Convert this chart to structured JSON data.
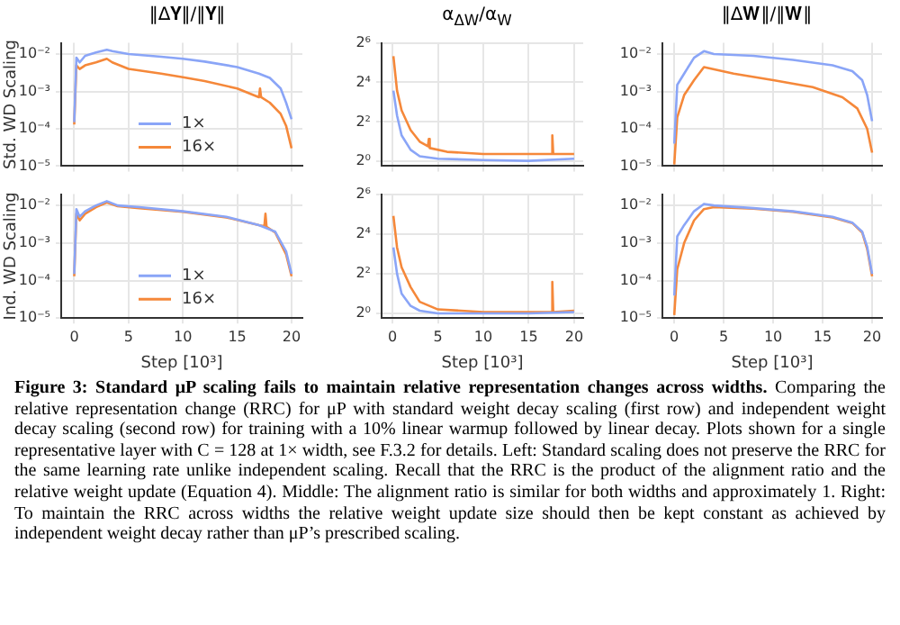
{
  "chart_data": [
    {
      "type": "line",
      "title": "‖Δ𝐘‖/‖𝐘‖",
      "ylabel": "Std. WD Scaling",
      "log": "y",
      "grid": true,
      "legend": "bottom",
      "tick_labels": "y",
      "xlim": [
        -1.2,
        21
      ],
      "xticks": [
        0,
        5,
        10,
        15,
        20
      ],
      "ylim": [
        1e-05,
        0.02
      ],
      "yticks": [
        {
          "value": 1e-05,
          "label": "10⁻⁵"
        },
        {
          "value": 0.0001,
          "label": "10⁻⁴"
        },
        {
          "value": 0.001,
          "label": "10⁻³"
        },
        {
          "value": 0.01,
          "label": "10⁻²"
        }
      ],
      "annotations": [
        "Figure 3: Standard μP scaling fails to maintain relative representation changes across widths.",
        "Comparing the relative representation change (RRC) for μP with standard weight decay scaling (first row) and independent weight decay scaling (second row) for training with a 10% linear warmup followed by linear decay. Plots shown for a single representative layer with C = 128 at 1× width, see F.3.2 for details.",
        "Left: Standard scaling does not preserve the RRC for the same learning rate unlike independent scaling. Recall that the RRC is the product of the alignment ratio and the relative weight update (Equation 4).",
        "Middle: The alignment ratio is similar for both widths and approximately 1.",
        "Right: To maintain the RRC across widths the relative weight update size should then be kept constant as achieved by independent weight decay rather than μP’s prescribed scaling."
      ],
      "series": [
        {
          "name": "1×",
          "color": "#8aa5f7",
          "x": [
            0,
            0.2,
            0.5,
            1,
            2,
            3,
            3.5,
            5,
            8,
            10,
            12,
            15,
            17,
            18,
            19,
            19.5,
            20
          ],
          "values": [
            0.00015,
            0.008,
            0.006,
            0.009,
            0.011,
            0.013,
            0.012,
            0.01,
            0.0085,
            0.0075,
            0.0063,
            0.0045,
            0.003,
            0.0023,
            0.0012,
            0.0005,
            0.00018
          ]
        },
        {
          "name": "16×",
          "color": "#f5883a",
          "x": [
            0,
            0.2,
            0.5,
            1,
            2,
            3,
            3.5,
            5,
            8,
            10,
            12,
            15,
            17,
            17.1,
            17.2,
            18,
            19,
            19.5,
            20
          ],
          "values": [
            0.00013,
            0.005,
            0.004,
            0.005,
            0.006,
            0.0075,
            0.006,
            0.004,
            0.003,
            0.0024,
            0.0019,
            0.0012,
            0.0007,
            0.0012,
            0.0007,
            0.0005,
            0.00025,
            0.00012,
            3e-05
          ]
        }
      ]
    },
    {
      "type": "line",
      "title": "α$_{ΔW}$/α$_{W}$",
      "log": "y",
      "grid": true,
      "tick_labels": "y",
      "xlim": [
        -1.2,
        21
      ],
      "xticks": [
        0,
        5,
        10,
        15,
        20
      ],
      "ylim": [
        0.85,
        64
      ],
      "yticks": [
        {
          "value": 1,
          "label": "2⁰"
        },
        {
          "value": 4,
          "label": "2²"
        },
        {
          "value": 16,
          "label": "2⁴"
        },
        {
          "value": 64,
          "label": "2⁶"
        }
      ],
      "series": [
        {
          "color": "#8aa5f7",
          "x": [
            0.1,
            0.5,
            1,
            2,
            3,
            5,
            10,
            15,
            20
          ],
          "values": [
            12,
            5,
            2.5,
            1.5,
            1.2,
            1.1,
            1.05,
            1.02,
            1.1
          ]
        },
        {
          "color": "#f5883a",
          "x": [
            0.1,
            0.5,
            1,
            2,
            3,
            3.9,
            4,
            4.1,
            6,
            10,
            15,
            17.5,
            17.6,
            17.7,
            20
          ],
          "values": [
            40,
            12,
            6,
            3,
            2,
            1.7,
            2.2,
            1.6,
            1.4,
            1.3,
            1.3,
            1.3,
            2.5,
            1.3,
            1.3
          ]
        }
      ]
    },
    {
      "type": "line",
      "title": "‖Δ𝐖‖/‖𝐖‖",
      "log": "y",
      "grid": true,
      "tick_labels": "y",
      "xlim": [
        -1.2,
        21
      ],
      "xticks": [
        0,
        5,
        10,
        15,
        20
      ],
      "ylim": [
        1e-05,
        0.02
      ],
      "yticks": [
        {
          "value": 1e-05,
          "label": "10⁻⁵"
        },
        {
          "value": 0.0001,
          "label": "10⁻⁴"
        },
        {
          "value": 0.001,
          "label": "10⁻³"
        },
        {
          "value": 0.01,
          "label": "10⁻²"
        }
      ],
      "series": [
        {
          "color": "#8aa5f7",
          "x": [
            0,
            0.3,
            1,
            2,
            3,
            4,
            8,
            12,
            16,
            18,
            19,
            19.5,
            20
          ],
          "values": [
            4e-05,
            0.0015,
            0.003,
            0.008,
            0.012,
            0.01,
            0.009,
            0.007,
            0.005,
            0.0035,
            0.002,
            0.0008,
            0.00016
          ]
        },
        {
          "color": "#f5883a",
          "x": [
            0,
            0.3,
            1,
            2,
            3,
            6,
            10,
            14,
            17,
            18.5,
            19.5,
            20
          ],
          "values": [
            1.1e-05,
            0.0002,
            0.0008,
            0.002,
            0.0045,
            0.003,
            0.002,
            0.0013,
            0.0007,
            0.00035,
            0.0001,
            2.3e-05
          ]
        }
      ]
    },
    {
      "type": "line",
      "xlabel": "Step [10³]",
      "ylabel": "Ind. WD Scaling",
      "log": "y",
      "grid": true,
      "legend": "bottom",
      "xlim": [
        -1.2,
        21
      ],
      "xticks": [
        0,
        5,
        10,
        15,
        20
      ],
      "ylim": [
        1e-05,
        0.02
      ],
      "yticks": [
        {
          "value": 1e-05,
          "label": "10⁻⁵"
        },
        {
          "value": 0.0001,
          "label": "10⁻⁴"
        },
        {
          "value": 0.001,
          "label": "10⁻³"
        },
        {
          "value": 0.01,
          "label": "10⁻²"
        }
      ],
      "series": [
        {
          "name": "1×",
          "color": "#8aa5f7",
          "x": [
            0,
            0.2,
            0.5,
            1,
            2,
            3,
            4,
            6,
            10,
            14,
            17,
            18.5,
            19.5,
            20
          ],
          "values": [
            0.00015,
            0.008,
            0.005,
            0.007,
            0.01,
            0.013,
            0.01,
            0.009,
            0.007,
            0.005,
            0.003,
            0.002,
            0.0006,
            0.00015
          ]
        },
        {
          "name": "16×",
          "color": "#f5883a",
          "x": [
            0,
            0.2,
            0.5,
            1,
            2,
            3,
            4,
            6,
            10,
            14,
            17,
            17.5,
            17.6,
            17.7,
            18.5,
            19.5,
            20
          ],
          "values": [
            0.00013,
            0.006,
            0.004,
            0.006,
            0.009,
            0.012,
            0.0095,
            0.0085,
            0.0068,
            0.0048,
            0.003,
            0.0028,
            0.006,
            0.0027,
            0.0019,
            0.0005,
            0.00013
          ]
        }
      ]
    },
    {
      "type": "line",
      "xlabel": "Step [10³]",
      "log": "y",
      "grid": true,
      "xlim": [
        -1.2,
        21
      ],
      "xticks": [
        0,
        5,
        10,
        15,
        20
      ],
      "ylim": [
        0.85,
        64
      ],
      "yticks": [
        {
          "value": 1,
          "label": "2⁰"
        },
        {
          "value": 4,
          "label": "2²"
        },
        {
          "value": 16,
          "label": "2⁴"
        },
        {
          "value": 64,
          "label": "2⁶"
        }
      ],
      "series": [
        {
          "color": "#8aa5f7",
          "x": [
            0.1,
            0.5,
            1,
            2,
            3,
            5,
            10,
            15,
            20
          ],
          "values": [
            10,
            4,
            2,
            1.3,
            1.1,
            1,
            1,
            1,
            1.05
          ]
        },
        {
          "color": "#f5883a",
          "x": [
            0.1,
            0.5,
            1,
            2,
            3,
            5,
            10,
            17.5,
            17.6,
            17.7,
            20
          ],
          "values": [
            30,
            10,
            5,
            2.5,
            1.5,
            1.15,
            1.05,
            1.05,
            3,
            1.05,
            1.1
          ]
        }
      ]
    },
    {
      "type": "line",
      "xlabel": "Step [10³]",
      "log": "y",
      "grid": true,
      "xlim": [
        -1.2,
        21
      ],
      "xticks": [
        0,
        5,
        10,
        15,
        20
      ],
      "ylim": [
        1e-05,
        0.02
      ],
      "yticks": [
        {
          "value": 1e-05,
          "label": "10⁻⁵"
        },
        {
          "value": 0.0001,
          "label": "10⁻⁴"
        },
        {
          "value": 0.001,
          "label": "10⁻³"
        },
        {
          "value": 0.01,
          "label": "10⁻²"
        }
      ],
      "series": [
        {
          "color": "#8aa5f7",
          "x": [
            0,
            0.3,
            1,
            2,
            3,
            4,
            8,
            12,
            16,
            18,
            19,
            19.5,
            20
          ],
          "values": [
            4e-05,
            0.0015,
            0.003,
            0.007,
            0.011,
            0.01,
            0.0085,
            0.007,
            0.005,
            0.0035,
            0.002,
            0.0008,
            0.00015
          ]
        },
        {
          "color": "#f5883a",
          "x": [
            0,
            0.3,
            1,
            2,
            3,
            4,
            8,
            12,
            16,
            18,
            19,
            19.5,
            20
          ],
          "values": [
            1.2e-05,
            0.0002,
            0.001,
            0.004,
            0.008,
            0.009,
            0.0082,
            0.0068,
            0.0048,
            0.0034,
            0.0019,
            0.0007,
            0.00013
          ]
        }
      ]
    }
  ]
}
